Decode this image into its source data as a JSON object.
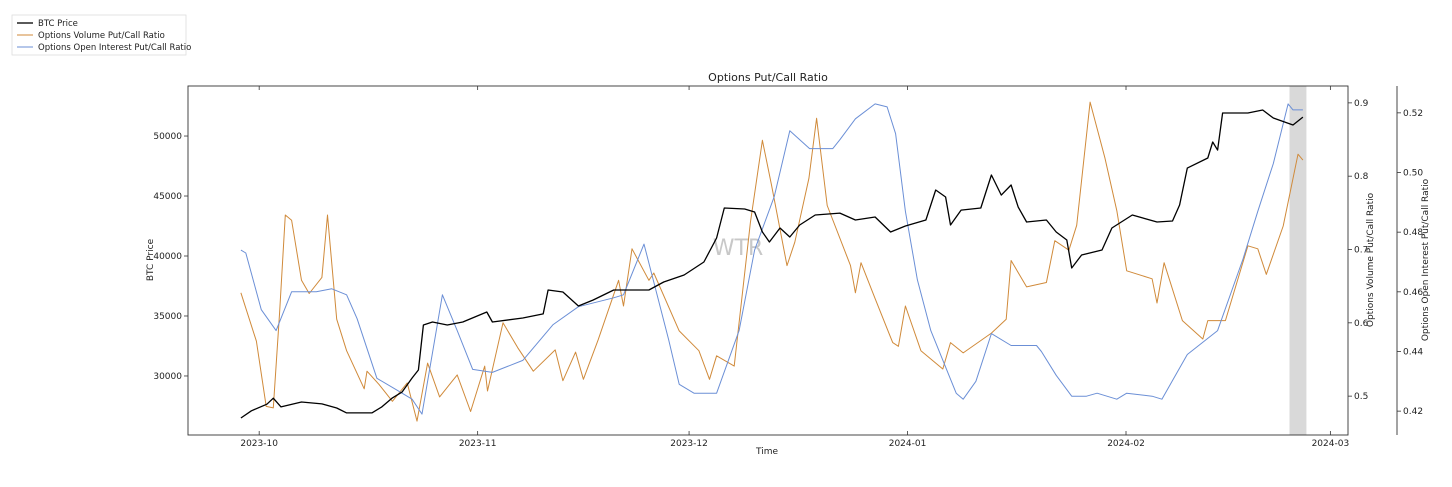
{
  "chart_data": {
    "type": "line",
    "title": "Options Put/Call Ratio",
    "xlabel": "Time",
    "x_units": "days since 2023-10-01",
    "xlim": [
      -10.1,
      154.5
    ],
    "x_ticks": [
      {
        "day": 0,
        "label": "2023-10"
      },
      {
        "day": 31,
        "label": "2023-11"
      },
      {
        "day": 61,
        "label": "2023-12"
      },
      {
        "day": 92,
        "label": "2024-01"
      },
      {
        "day": 123,
        "label": "2024-02"
      },
      {
        "day": 152,
        "label": "2024-03"
      }
    ],
    "watermark": "WTR",
    "shaded_region": [
      146.2,
      148.6
    ],
    "legend": {
      "placement": "top-left",
      "entries": [
        "BTC Price",
        "Options Volume Put/Call Ratio",
        "Options Open Interest Put/Call Ratio"
      ]
    },
    "axes": {
      "btc": {
        "label": "BTC Price",
        "side": "left",
        "ylim": [
          25080,
          54170
        ],
        "ticks": [
          30000,
          35000,
          40000,
          45000,
          50000
        ],
        "tick_labels": [
          "30000",
          "35000",
          "40000",
          "45000",
          "50000"
        ]
      },
      "volume": {
        "label": "Options Volume Put/Call Ratio",
        "side": "right",
        "ylim": [
          0.447,
          0.923
        ],
        "ticks": [
          0.5,
          0.6,
          0.7,
          0.8,
          0.9
        ],
        "tick_labels": [
          "0.5",
          "0.6",
          "0.7",
          "0.8",
          "0.9"
        ]
      },
      "oi": {
        "label": "Options Open Interest Put/Call Ratio",
        "side": "right-outer",
        "ylim": [
          0.412,
          0.529
        ],
        "ticks": [
          0.42,
          0.44,
          0.46,
          0.48,
          0.5,
          0.52
        ],
        "tick_labels": [
          "0.42",
          "0.44",
          "0.46",
          "0.48",
          "0.50",
          "0.52"
        ]
      }
    },
    "series": [
      {
        "name": "BTC Price",
        "axis": "btc",
        "color": "#000000",
        "width": 1.3,
        "points": [
          [
            -2.6,
            26500
          ],
          [
            -1.1,
            27100
          ],
          [
            1.1,
            27650
          ],
          [
            2.0,
            28150
          ],
          [
            3.1,
            27420
          ],
          [
            6.0,
            27830
          ],
          [
            8.9,
            27670
          ],
          [
            11.0,
            27330
          ],
          [
            12.4,
            26920
          ],
          [
            16.0,
            26920
          ],
          [
            17.4,
            27420
          ],
          [
            18.9,
            28170
          ],
          [
            20.3,
            28670
          ],
          [
            21.7,
            29830
          ],
          [
            22.6,
            30500
          ],
          [
            23.3,
            34250
          ],
          [
            24.6,
            34500
          ],
          [
            26.7,
            34250
          ],
          [
            28.9,
            34500
          ],
          [
            32.3,
            35330
          ],
          [
            33.1,
            34500
          ],
          [
            37.4,
            34830
          ],
          [
            40.3,
            35170
          ],
          [
            41.0,
            37170
          ],
          [
            43.1,
            37000
          ],
          [
            45.3,
            35830
          ],
          [
            47.4,
            36330
          ],
          [
            50.3,
            37170
          ],
          [
            53.1,
            37170
          ],
          [
            55.3,
            37170
          ],
          [
            57.4,
            37830
          ],
          [
            60.3,
            38420
          ],
          [
            63.1,
            39500
          ],
          [
            64.9,
            41500
          ],
          [
            66.0,
            44000
          ],
          [
            68.9,
            43920
          ],
          [
            70.3,
            43670
          ],
          [
            71.4,
            42000
          ],
          [
            72.4,
            41170
          ],
          [
            73.9,
            42330
          ],
          [
            75.3,
            41580
          ],
          [
            76.7,
            42580
          ],
          [
            78.9,
            43420
          ],
          [
            82.4,
            43580
          ],
          [
            84.6,
            43000
          ],
          [
            87.4,
            43250
          ],
          [
            89.6,
            42000
          ],
          [
            91.7,
            42500
          ],
          [
            94.6,
            43000
          ],
          [
            96.0,
            45500
          ],
          [
            97.4,
            44920
          ],
          [
            98.1,
            42580
          ],
          [
            99.6,
            43830
          ],
          [
            102.4,
            44000
          ],
          [
            103.9,
            46750
          ],
          [
            105.3,
            45080
          ],
          [
            106.7,
            45920
          ],
          [
            107.7,
            44080
          ],
          [
            108.9,
            42830
          ],
          [
            111.7,
            43000
          ],
          [
            113.1,
            42000
          ],
          [
            114.6,
            41330
          ],
          [
            115.3,
            39000
          ],
          [
            116.7,
            40080
          ],
          [
            119.6,
            40500
          ],
          [
            121.0,
            42330
          ],
          [
            123.9,
            43420
          ],
          [
            127.4,
            42830
          ],
          [
            129.6,
            42920
          ],
          [
            130.6,
            44250
          ],
          [
            131.7,
            47330
          ],
          [
            134.6,
            48170
          ],
          [
            135.3,
            49500
          ],
          [
            136.0,
            48830
          ],
          [
            136.7,
            51920
          ],
          [
            140.3,
            51920
          ],
          [
            142.4,
            52170
          ],
          [
            143.9,
            51500
          ],
          [
            146.7,
            50920
          ],
          [
            148.1,
            51580
          ]
        ]
      },
      {
        "name": "Options Volume Put/Call Ratio",
        "axis": "volume",
        "color": "#d08a3a",
        "width": 1,
        "points": [
          [
            -2.6,
            0.641
          ],
          [
            -0.4,
            0.575
          ],
          [
            1.0,
            0.486
          ],
          [
            2.0,
            0.484
          ],
          [
            2.9,
            0.614
          ],
          [
            3.7,
            0.747
          ],
          [
            4.6,
            0.74
          ],
          [
            6.0,
            0.658
          ],
          [
            7.1,
            0.64
          ],
          [
            8.9,
            0.662
          ],
          [
            9.7,
            0.747
          ],
          [
            11.0,
            0.605
          ],
          [
            12.4,
            0.562
          ],
          [
            14.9,
            0.51
          ],
          [
            15.3,
            0.534
          ],
          [
            17.0,
            0.516
          ],
          [
            18.9,
            0.493
          ],
          [
            21.0,
            0.518
          ],
          [
            22.4,
            0.466
          ],
          [
            23.9,
            0.545
          ],
          [
            25.6,
            0.499
          ],
          [
            28.1,
            0.529
          ],
          [
            30.0,
            0.479
          ],
          [
            32.0,
            0.541
          ],
          [
            32.4,
            0.507
          ],
          [
            34.6,
            0.6
          ],
          [
            36.7,
            0.566
          ],
          [
            38.9,
            0.534
          ],
          [
            42.0,
            0.563
          ],
          [
            43.1,
            0.521
          ],
          [
            44.9,
            0.56
          ],
          [
            46.0,
            0.523
          ],
          [
            48.1,
            0.577
          ],
          [
            51.0,
            0.658
          ],
          [
            51.7,
            0.623
          ],
          [
            52.9,
            0.701
          ],
          [
            55.3,
            0.658
          ],
          [
            56.0,
            0.668
          ],
          [
            59.6,
            0.589
          ],
          [
            62.4,
            0.562
          ],
          [
            63.9,
            0.523
          ],
          [
            64.9,
            0.555
          ],
          [
            67.4,
            0.541
          ],
          [
            69.7,
            0.737
          ],
          [
            71.4,
            0.849
          ],
          [
            72.7,
            0.788
          ],
          [
            74.9,
            0.678
          ],
          [
            76.0,
            0.71
          ],
          [
            78.0,
            0.797
          ],
          [
            79.1,
            0.879
          ],
          [
            80.6,
            0.76
          ],
          [
            83.9,
            0.678
          ],
          [
            84.6,
            0.641
          ],
          [
            85.4,
            0.682
          ],
          [
            87.4,
            0.633
          ],
          [
            89.9,
            0.573
          ],
          [
            90.7,
            0.568
          ],
          [
            91.7,
            0.623
          ],
          [
            93.9,
            0.562
          ],
          [
            97.0,
            0.537
          ],
          [
            98.1,
            0.573
          ],
          [
            99.9,
            0.559
          ],
          [
            103.9,
            0.586
          ],
          [
            106.0,
            0.605
          ],
          [
            106.7,
            0.685
          ],
          [
            108.9,
            0.649
          ],
          [
            111.7,
            0.655
          ],
          [
            112.9,
            0.712
          ],
          [
            114.9,
            0.699
          ],
          [
            116.0,
            0.733
          ],
          [
            117.9,
            0.901
          ],
          [
            120.0,
            0.825
          ],
          [
            121.7,
            0.753
          ],
          [
            123.1,
            0.671
          ],
          [
            126.7,
            0.66
          ],
          [
            127.4,
            0.627
          ],
          [
            128.4,
            0.682
          ],
          [
            131.0,
            0.603
          ],
          [
            133.9,
            0.578
          ],
          [
            134.6,
            0.603
          ],
          [
            137.1,
            0.603
          ],
          [
            140.3,
            0.705
          ],
          [
            141.7,
            0.701
          ],
          [
            142.9,
            0.666
          ],
          [
            145.3,
            0.732
          ],
          [
            147.4,
            0.83
          ],
          [
            148.1,
            0.822
          ]
        ]
      },
      {
        "name": "Options Open Interest Put/Call Ratio",
        "axis": "oi",
        "color": "#6b8fd6",
        "width": 1,
        "points": [
          [
            -2.6,
            0.474
          ],
          [
            -1.9,
            0.473
          ],
          [
            0.3,
            0.454
          ],
          [
            2.4,
            0.447
          ],
          [
            4.6,
            0.46
          ],
          [
            8.1,
            0.46
          ],
          [
            10.3,
            0.461
          ],
          [
            12.4,
            0.459
          ],
          [
            13.9,
            0.451
          ],
          [
            16.7,
            0.431
          ],
          [
            19.6,
            0.427
          ],
          [
            21.7,
            0.424
          ],
          [
            23.1,
            0.419
          ],
          [
            26.0,
            0.459
          ],
          [
            28.1,
            0.447
          ],
          [
            30.3,
            0.434
          ],
          [
            33.1,
            0.433
          ],
          [
            37.4,
            0.437
          ],
          [
            41.7,
            0.449
          ],
          [
            45.3,
            0.455
          ],
          [
            50.3,
            0.458
          ],
          [
            51.7,
            0.459
          ],
          [
            54.6,
            0.476
          ],
          [
            58.1,
            0.444
          ],
          [
            59.6,
            0.429
          ],
          [
            61.7,
            0.426
          ],
          [
            64.9,
            0.426
          ],
          [
            68.1,
            0.447
          ],
          [
            70.3,
            0.474
          ],
          [
            73.1,
            0.492
          ],
          [
            75.3,
            0.514
          ],
          [
            78.1,
            0.508
          ],
          [
            81.4,
            0.508
          ],
          [
            82.4,
            0.511
          ],
          [
            84.6,
            0.518
          ],
          [
            87.4,
            0.523
          ],
          [
            89.1,
            0.522
          ],
          [
            90.3,
            0.513
          ],
          [
            91.7,
            0.487
          ],
          [
            93.4,
            0.464
          ],
          [
            95.3,
            0.447
          ],
          [
            98.9,
            0.426
          ],
          [
            99.9,
            0.424
          ],
          [
            101.7,
            0.43
          ],
          [
            103.9,
            0.446
          ],
          [
            106.7,
            0.442
          ],
          [
            110.3,
            0.442
          ],
          [
            111.0,
            0.44
          ],
          [
            113.1,
            0.432
          ],
          [
            115.3,
            0.425
          ],
          [
            117.4,
            0.425
          ],
          [
            118.9,
            0.426
          ],
          [
            121.7,
            0.424
          ],
          [
            123.1,
            0.426
          ],
          [
            126.7,
            0.425
          ],
          [
            128.1,
            0.424
          ],
          [
            131.7,
            0.439
          ],
          [
            136.0,
            0.447
          ],
          [
            139.6,
            0.471
          ],
          [
            141.7,
            0.487
          ],
          [
            143.9,
            0.503
          ],
          [
            146.0,
            0.523
          ],
          [
            146.7,
            0.521
          ],
          [
            148.1,
            0.521
          ]
        ]
      }
    ]
  }
}
